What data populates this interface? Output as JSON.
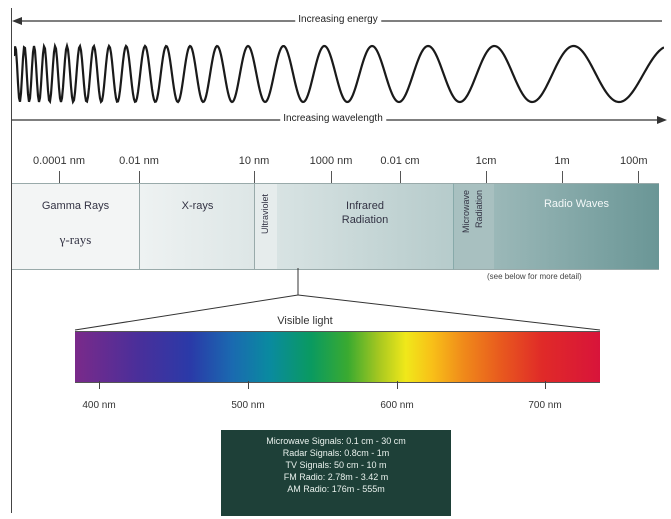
{
  "header": {
    "energy_label": "Increasing energy",
    "wavelength_label": "Increasing wavelength"
  },
  "scale_ticks": [
    "0.0001 nm",
    "0.01 nm",
    "10 nm",
    "1000 nm",
    "0.01 cm",
    "1cm",
    "1m",
    "100m"
  ],
  "bands": {
    "gamma": {
      "name": "Gamma Rays",
      "symbol": "γ-rays"
    },
    "xray": {
      "name": "X-rays"
    },
    "uv": {
      "name": "Ultraviolet"
    },
    "infrared": {
      "name_line1": "Infrared",
      "name_line2": "Radiation"
    },
    "microwave": {
      "name_line1": "Microwave",
      "name_line2": "Radiation"
    },
    "radio": {
      "name": "Radio Waves"
    }
  },
  "note": "(see below for more detail)",
  "visible": {
    "title": "Visible light",
    "ticks": [
      "400 nm",
      "500 nm",
      "600 nm",
      "700 nm"
    ]
  },
  "legend": {
    "lines": [
      "Microwave Signals: 0.1 cm - 30 cm",
      "Radar Signals: 0.8cm - 1m",
      "TV Signals: 50 cm - 10 m",
      "FM Radio: 2.78m - 3.42 m",
      "AM Radio: 176m - 555m"
    ]
  },
  "colors": {
    "band_light": "#eef2f2",
    "band_dark": "#5f8f8f",
    "legend_bg": "#1e4038"
  }
}
